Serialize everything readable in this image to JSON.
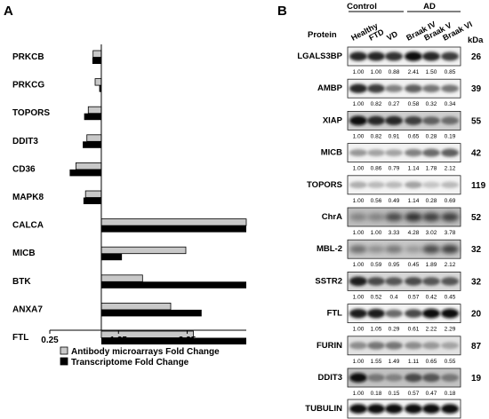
{
  "chart_data": [
    {
      "panel": "A",
      "type": "bar",
      "orientation": "horizontal",
      "categories": [
        "PRKCB",
        "PRKCG",
        "TOPORS",
        "DDIT3",
        "CD36",
        "MAPK8",
        "CALCA",
        "MICB",
        "BTK",
        "ANXA7",
        "FTL"
      ],
      "series": [
        {
          "name": "Antibody microarrays Fold Change",
          "color": "#c8c8c8",
          "values": [
            0.88,
            0.91,
            0.81,
            0.79,
            0.63,
            0.77,
            3.11,
            2.23,
            1.6,
            2.01,
            2.34
          ]
        },
        {
          "name": "Transcriptome Fold Change",
          "color": "#000000",
          "values": [
            0.87,
            0.97,
            0.75,
            0.73,
            0.54,
            0.74,
            3.11,
            1.3,
            3.11,
            2.46,
            3.11
          ]
        }
      ],
      "baseline": 1,
      "xlim": [
        0.25,
        3.11
      ],
      "xticks": [
        "0.25",
        "1.25",
        "2.25"
      ],
      "xtick_values": [
        0.25,
        1.25,
        2.25
      ],
      "xlabel": "",
      "ylabel": "",
      "legend_position": "bottom"
    },
    {
      "panel": "B",
      "type": "table",
      "groups": [
        "Control",
        "AD"
      ],
      "columns": [
        "Healthy",
        "FTD",
        "VD",
        "Braak IV",
        "Braak V",
        "Braak VI"
      ],
      "header_protein": "Protein",
      "header_kda": "kDa",
      "rows": [
        {
          "protein": "LGALS3BP",
          "kda": "26",
          "values": [
            "1.00",
            "1.00",
            "0.88",
            "2.41",
            "1.50",
            "0.85"
          ]
        },
        {
          "protein": "AMBP",
          "kda": "39",
          "values": [
            "1.00",
            "0.82",
            "0.27",
            "0.58",
            "0.32",
            "0.34"
          ]
        },
        {
          "protein": "XIAP",
          "kda": "55",
          "values": [
            "1.00",
            "0.82",
            "0.91",
            "0.65",
            "0.28",
            "0.19"
          ]
        },
        {
          "protein": "MICB",
          "kda": "42",
          "values": [
            "1.00",
            "0.86",
            "0.79",
            "1.14",
            "1.78",
            "2.12"
          ]
        },
        {
          "protein": "TOPORS",
          "kda": "119",
          "values": [
            "1.00",
            "0.56",
            "0.49",
            "1.14",
            "0.28",
            "0.69"
          ]
        },
        {
          "protein": "ChrA",
          "kda": "52",
          "values": [
            "1.00",
            "1.00",
            "3.33",
            "4.28",
            "3.02",
            "3.78"
          ]
        },
        {
          "protein": "MBL-2",
          "kda": "32",
          "values": [
            "1.00",
            "0.59",
            "0.95",
            "0.45",
            "1.89",
            "2.12"
          ]
        },
        {
          "protein": "SSTR2",
          "kda": "32",
          "values": [
            "1.00",
            "0.52",
            "0.4",
            "0.57",
            "0.42",
            "0.45"
          ]
        },
        {
          "protein": "FTL",
          "kda": "20",
          "values": [
            "1.00",
            "1.05",
            "0.29",
            "0.61",
            "2.22",
            "2.29"
          ]
        },
        {
          "protein": "FURIN",
          "kda": "87",
          "values": [
            "1.00",
            "1.55",
            "1.49",
            "1.11",
            "0.65",
            "0.55"
          ]
        },
        {
          "protein": "DDIT3",
          "kda": "19",
          "values": [
            "1.00",
            "0.18",
            "0.15",
            "0.57",
            "0.47",
            "0.18"
          ]
        },
        {
          "protein": "TUBULIN",
          "kda": "",
          "values": []
        }
      ]
    }
  ],
  "labels": {
    "panel_a": "A",
    "panel_b": "B"
  }
}
